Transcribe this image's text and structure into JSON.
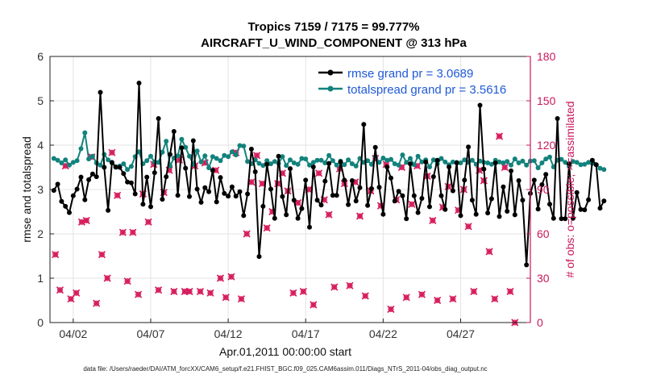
{
  "chart_data": {
    "type": "line",
    "title": "Tropics 7159 / 7175 = 99.777%",
    "subtitle": "AIRCRAFT_U_WIND_COMPONENT @ 313 hPa",
    "xlabel": "Apr.01,2011 00:00:00 start",
    "ylabel": "rmse and totalspread",
    "ylabel_right": "# of obs: o=possible; ×=assimilated",
    "footer": "data file: /Users/raeder/DAI/ATM_forcXX/CAM6_setup/f.e21.FHIST_BGC.f09_025.CAM6assim.011/Diags_NTrS_2011-04/obs_diag_output.nc",
    "xlim": [
      0.5,
      31.5
    ],
    "ylim": [
      0,
      6
    ],
    "ylim_right": [
      0,
      180
    ],
    "grid": true,
    "legend_position": "top-right",
    "x_ticks": [
      {
        "x": 2,
        "label": "04/02"
      },
      {
        "x": 7,
        "label": "04/07"
      },
      {
        "x": 12,
        "label": "04/12"
      },
      {
        "x": 17,
        "label": "04/17"
      },
      {
        "x": 22,
        "label": "04/22"
      },
      {
        "x": 27,
        "label": "04/27"
      }
    ],
    "y_ticks": [
      "0",
      "1",
      "2",
      "3",
      "4",
      "5",
      "6"
    ],
    "y_ticks_right": [
      "0",
      "30",
      "60",
      "90",
      "120",
      "150",
      "180"
    ],
    "x_start": 0.75,
    "x_step": 0.25,
    "series": [
      {
        "name": "rmse grand pr = 3.0689",
        "color": "#000000",
        "axis": "left",
        "values": [
          2.98,
          3.12,
          2.73,
          2.62,
          2.48,
          2.86,
          3.01,
          3.28,
          2.77,
          3.22,
          3.35,
          3.29,
          5.19,
          3.5,
          2.53,
          3.61,
          3.51,
          3.5,
          3.36,
          3.17,
          3.15,
          2.9,
          5.4,
          2.67,
          3.28,
          2.61,
          3.38,
          4.6,
          2.78,
          3.29,
          3.79,
          4.31,
          2.87,
          3.94,
          3.48,
          2.84,
          4.1,
          3.01,
          2.71,
          3.04,
          2.95,
          3.43,
          2.72,
          3.27,
          2.91,
          2.85,
          3.06,
          2.85,
          2.95,
          2.41,
          2.9,
          3.91,
          3.4,
          1.49,
          2.62,
          3.57,
          3.01,
          2.35,
          3.75,
          2.84,
          2.43,
          3.47,
          2.76,
          2.35,
          2.57,
          3.21,
          2.15,
          3.51,
          2.76,
          2.65,
          3.19,
          3.59,
          2.87,
          2.87,
          3.62,
          3.21,
          2.66,
          3.2,
          2.74,
          3.04,
          4.47,
          2.64,
          3.02,
          3.95,
          3.05,
          2.44,
          3.51,
          3.26,
          2.74,
          2.96,
          2.86,
          2.34,
          3.58,
          2.86,
          2.48,
          2.8,
          3.62,
          2.61,
          3.29,
          3.66,
          2.86,
          2.55,
          3.51,
          2.97,
          3.6,
          2.41,
          3.21,
          3.96,
          2.76,
          2.44,
          4.9,
          3.46,
          2.47,
          2.79,
          3.6,
          2.39,
          3.06,
          2.51,
          3.42,
          2.43,
          3.2,
          2.76,
          1.3,
          2.91,
          3.21,
          2.56,
          3.11,
          3.34,
          2.67,
          2.35,
          4.6,
          2.34,
          2.34,
          3.58,
          2.35,
          2.93,
          2.55,
          2.54,
          2.77,
          3.66,
          3.56,
          2.58,
          2.74
        ]
      },
      {
        "name": "totalspread grand pr = 3.5616",
        "color": "#12827c",
        "axis": "left",
        "values": [
          3.7,
          3.66,
          3.6,
          3.67,
          3.55,
          3.61,
          3.65,
          3.92,
          4.28,
          3.69,
          3.75,
          3.6,
          3.55,
          3.79,
          3.67,
          3.6,
          3.5,
          3.53,
          3.58,
          3.45,
          3.52,
          3.74,
          3.85,
          3.58,
          3.65,
          3.75,
          3.62,
          3.61,
          3.84,
          4.09,
          3.53,
          3.71,
          3.76,
          4.13,
          3.95,
          3.75,
          3.57,
          3.87,
          3.62,
          3.76,
          3.49,
          3.74,
          3.7,
          3.65,
          3.77,
          3.74,
          3.85,
          3.78,
          3.99,
          3.98,
          3.63,
          3.58,
          3.67,
          3.59,
          3.54,
          3.65,
          3.58,
          3.63,
          3.59,
          3.74,
          3.54,
          3.67,
          3.6,
          3.57,
          3.7,
          3.69,
          3.55,
          3.61,
          3.66,
          3.66,
          3.6,
          3.77,
          3.65,
          3.55,
          3.64,
          3.56,
          3.67,
          3.58,
          3.53,
          3.7,
          3.61,
          3.65,
          3.57,
          3.74,
          3.61,
          3.71,
          3.66,
          3.68,
          3.58,
          3.55,
          3.78,
          3.61,
          3.7,
          3.56,
          3.75,
          3.62,
          3.67,
          3.51,
          3.67,
          3.58,
          3.7,
          3.62,
          3.56,
          3.62,
          3.61,
          3.6,
          3.67,
          3.61,
          3.66,
          3.57,
          3.64,
          3.61,
          3.6,
          3.57,
          3.66,
          3.62,
          3.6,
          3.63,
          3.55,
          3.69,
          3.6,
          3.64,
          3.55,
          3.64,
          3.65,
          3.49,
          3.6,
          3.69,
          3.73,
          3.51,
          3.66,
          3.68,
          3.61,
          3.52,
          3.63,
          3.61,
          3.56,
          3.57,
          3.61,
          3.59,
          3.56,
          3.48,
          3.45
        ]
      }
    ],
    "obs_assimilated": {
      "name": "# of obs assimilated",
      "color": "#d6195a",
      "axis": "right",
      "points": [
        [
          0.85,
          46
        ],
        [
          1.15,
          22
        ],
        [
          1.5,
          106
        ],
        [
          1.85,
          16
        ],
        [
          2.2,
          20
        ],
        [
          2.55,
          68
        ],
        [
          2.85,
          69
        ],
        [
          3.2,
          112
        ],
        [
          3.5,
          13
        ],
        [
          3.85,
          46
        ],
        [
          4.2,
          30
        ],
        [
          4.5,
          115
        ],
        [
          4.85,
          86
        ],
        [
          5.2,
          61
        ],
        [
          5.5,
          28
        ],
        [
          5.85,
          61
        ],
        [
          6.2,
          19
        ],
        [
          6.5,
          87
        ],
        [
          6.85,
          68
        ],
        [
          7.2,
          107
        ],
        [
          7.5,
          22
        ],
        [
          7.85,
          88
        ],
        [
          8.2,
          103
        ],
        [
          8.5,
          21
        ],
        [
          8.85,
          110
        ],
        [
          9.2,
          21
        ],
        [
          9.5,
          21
        ],
        [
          9.85,
          106
        ],
        [
          10.2,
          21
        ],
        [
          10.5,
          108
        ],
        [
          10.85,
          20
        ],
        [
          11.2,
          103
        ],
        [
          11.5,
          30
        ],
        [
          11.85,
          17
        ],
        [
          12.2,
          31
        ],
        [
          12.5,
          115
        ],
        [
          12.85,
          16
        ],
        [
          13.2,
          60
        ],
        [
          13.5,
          95
        ],
        [
          13.85,
          113
        ],
        [
          14.2,
          94
        ],
        [
          14.5,
          64
        ],
        [
          14.85,
          75
        ],
        [
          15.2,
          94
        ],
        [
          15.5,
          101
        ],
        [
          15.85,
          89
        ],
        [
          16.2,
          20
        ],
        [
          16.5,
          81
        ],
        [
          16.85,
          21
        ],
        [
          17.2,
          90
        ],
        [
          17.5,
          12
        ],
        [
          17.85,
          101
        ],
        [
          18.2,
          83
        ],
        [
          18.5,
          73
        ],
        [
          18.85,
          24
        ],
        [
          19.2,
          104
        ],
        [
          19.5,
          94
        ],
        [
          19.85,
          25
        ],
        [
          20.2,
          95
        ],
        [
          20.5,
          72
        ],
        [
          20.85,
          18
        ],
        [
          21.2,
          89
        ],
        [
          21.5,
          111
        ],
        [
          21.85,
          79
        ],
        [
          22.2,
          107
        ],
        [
          22.5,
          9
        ],
        [
          22.85,
          83
        ],
        [
          23.2,
          105
        ],
        [
          23.5,
          17
        ],
        [
          23.85,
          80
        ],
        [
          24.2,
          106
        ],
        [
          24.5,
          19
        ],
        [
          24.85,
          99
        ],
        [
          25.2,
          69
        ],
        [
          25.5,
          15
        ],
        [
          25.85,
          78
        ],
        [
          26.2,
          92
        ],
        [
          26.5,
          16
        ],
        [
          26.85,
          76
        ],
        [
          27.2,
          90
        ],
        [
          27.5,
          65
        ],
        [
          27.85,
          21
        ],
        [
          28.2,
          103
        ],
        [
          28.5,
          96
        ],
        [
          28.85,
          48
        ],
        [
          29.2,
          16
        ],
        [
          29.5,
          126
        ],
        [
          29.85,
          105
        ],
        [
          30.2,
          21
        ],
        [
          30.5,
          0
        ]
      ]
    }
  }
}
